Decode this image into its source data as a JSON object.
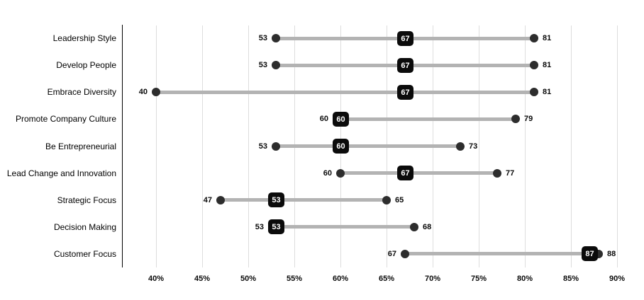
{
  "chart_data": {
    "type": "scatter",
    "subtype": "dumbbell-range",
    "title": "",
    "xlabel": "",
    "ylabel": "",
    "orientation": "horizontal",
    "grid": "vertical-only",
    "legend": "none",
    "x_axis": {
      "min": 40,
      "max": 90,
      "tick_values": [
        40,
        45,
        50,
        55,
        60,
        65,
        70,
        75,
        80,
        85,
        90
      ],
      "tick_labels": [
        "40%",
        "45%",
        "50%",
        "55%",
        "60%",
        "65%",
        "70%",
        "75%",
        "80%",
        "85%",
        "90%"
      ]
    },
    "categories": [
      "Leadership Style",
      "Develop People",
      "Embrace Diversity",
      "Promote Company Culture",
      "Be Entrepreneurial",
      "Lead Change and Innovation",
      "Strategic Focus",
      "Decision Making",
      "Customer Focus"
    ],
    "rows": [
      {
        "label": "Leadership Style",
        "low": 53,
        "badge": 67,
        "high": 81
      },
      {
        "label": "Develop People",
        "low": 53,
        "badge": 67,
        "high": 81
      },
      {
        "label": "Embrace Diversity",
        "low": 40,
        "badge": 67,
        "high": 81
      },
      {
        "label": "Promote Company Culture",
        "low": 60,
        "badge": 60,
        "high": 79
      },
      {
        "label": "Be Entrepreneurial",
        "low": 53,
        "badge": 60,
        "high": 73
      },
      {
        "label": "Lead Change and Innovation",
        "low": 60,
        "badge": 67,
        "high": 77
      },
      {
        "label": "Strategic Focus",
        "low": 47,
        "badge": 53,
        "high": 65
      },
      {
        "label": "Decision Making",
        "low": 53,
        "badge": 53,
        "high": 68
      },
      {
        "label": "Customer Focus",
        "low": 67,
        "badge": 87,
        "high": 88
      }
    ],
    "series": [
      {
        "name": "low",
        "values": [
          53,
          53,
          40,
          60,
          53,
          60,
          47,
          53,
          67
        ]
      },
      {
        "name": "badge",
        "values": [
          67,
          67,
          67,
          60,
          60,
          67,
          53,
          53,
          87
        ]
      },
      {
        "name": "high",
        "values": [
          81,
          81,
          81,
          79,
          73,
          77,
          65,
          68,
          88
        ]
      }
    ],
    "colors": {
      "dot": "#2d2d2d",
      "range_line": "#b3b3b3",
      "badge_bg": "#0b0b0b",
      "badge_text": "#ffffff",
      "gridline": "#dddddd",
      "axis_line": "#000000",
      "label_text": "#000000"
    }
  }
}
